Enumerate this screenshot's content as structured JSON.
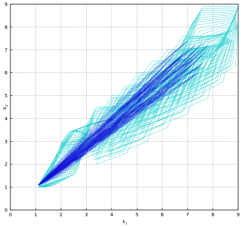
{
  "chart_data": {
    "type": "line",
    "title": "",
    "xlabel": "x",
    "xlabel_sub": "1",
    "ylabel": "x",
    "ylabel_sub": "2",
    "xlim": [
      0,
      9
    ],
    "ylim": [
      0,
      9
    ],
    "x_ticks": [
      "0",
      "1",
      "2",
      "3",
      "4",
      "5",
      "6",
      "7",
      "8",
      "9"
    ],
    "y_ticks": [
      "0",
      "1",
      "2",
      "3",
      "4",
      "5",
      "6",
      "7",
      "8",
      "9"
    ],
    "grid": true,
    "legend": "none",
    "colors": {
      "reachable_sets": "#1ecfcf",
      "trajectories": "#1010d8"
    },
    "series": [
      {
        "kind": "reachable-set-boxes",
        "color": "#1ecfcf",
        "boxes": [
          [
            [
              1.1,
              1.0
            ],
            [
              1.4,
              1.0
            ],
            [
              1.5,
              1.3
            ],
            [
              1.2,
              1.3
            ]
          ],
          [
            [
              1.2,
              1.05
            ],
            [
              1.8,
              1.1
            ],
            [
              2.2,
              2.3
            ],
            [
              1.6,
              2.0
            ]
          ],
          [
            [
              1.4,
              1.1
            ],
            [
              2.6,
              1.6
            ],
            [
              3.0,
              3.1
            ],
            [
              2.0,
              2.8
            ]
          ],
          [
            [
              1.9,
              2.6
            ],
            [
              2.4,
              2.0
            ],
            [
              3.4,
              3.0
            ],
            [
              2.6,
              3.5
            ]
          ],
          [
            [
              2.0,
              2.9
            ],
            [
              2.6,
              3.0
            ],
            [
              3.1,
              3.7
            ],
            [
              2.3,
              3.4
            ]
          ],
          [
            [
              2.6,
              2.1
            ],
            [
              3.6,
              2.6
            ],
            [
              4.4,
              4.1
            ],
            [
              3.2,
              3.8
            ]
          ],
          [
            [
              2.8,
              3.3
            ],
            [
              3.6,
              3.3
            ],
            [
              4.8,
              4.6
            ],
            [
              3.4,
              4.5
            ]
          ],
          [
            [
              3.4,
              2.0
            ],
            [
              4.6,
              2.5
            ],
            [
              5.4,
              4.4
            ],
            [
              4.2,
              4.2
            ]
          ],
          [
            [
              3.3,
              3.7
            ],
            [
              4.2,
              3.7
            ],
            [
              5.1,
              5.0
            ],
            [
              4.0,
              5.0
            ]
          ],
          [
            [
              3.9,
              2.3
            ],
            [
              5.4,
              3.0
            ],
            [
              6.0,
              4.9
            ],
            [
              4.6,
              4.4
            ]
          ],
          [
            [
              3.8,
              4.1
            ],
            [
              4.8,
              4.3
            ],
            [
              5.6,
              5.6
            ],
            [
              4.5,
              5.4
            ]
          ],
          [
            [
              4.4,
              2.8
            ],
            [
              6.2,
              3.6
            ],
            [
              6.9,
              5.6
            ],
            [
              5.2,
              5.0
            ]
          ],
          [
            [
              4.2,
              4.6
            ],
            [
              5.4,
              4.8
            ],
            [
              6.2,
              6.1
            ],
            [
              5.0,
              6.0
            ]
          ],
          [
            [
              5.2,
              3.4
            ],
            [
              7.0,
              4.2
            ],
            [
              7.6,
              6.2
            ],
            [
              6.0,
              5.6
            ]
          ],
          [
            [
              4.6,
              5.0
            ],
            [
              6.0,
              5.2
            ],
            [
              6.8,
              6.6
            ],
            [
              5.6,
              6.5
            ]
          ],
          [
            [
              5.8,
              3.9
            ],
            [
              7.8,
              4.9
            ],
            [
              8.2,
              6.8
            ],
            [
              6.6,
              6.1
            ]
          ],
          [
            [
              5.2,
              5.4
            ],
            [
              6.6,
              5.7
            ],
            [
              7.6,
              7.1
            ],
            [
              6.2,
              7.0
            ]
          ],
          [
            [
              6.6,
              4.6
            ],
            [
              8.4,
              5.6
            ],
            [
              8.8,
              7.4
            ],
            [
              7.2,
              6.7
            ]
          ],
          [
            [
              5.8,
              5.8
            ],
            [
              7.4,
              6.2
            ],
            [
              8.4,
              7.6
            ],
            [
              6.8,
              7.6
            ]
          ],
          [
            [
              7.2,
              5.2
            ],
            [
              8.9,
              6.3
            ],
            [
              9.0,
              8.0
            ],
            [
              7.8,
              7.3
            ]
          ],
          [
            [
              6.4,
              6.4
            ],
            [
              8.0,
              6.8
            ],
            [
              8.9,
              8.4
            ],
            [
              7.2,
              8.2
            ]
          ],
          [
            [
              7.0,
              7.0
            ],
            [
              8.4,
              7.2
            ],
            [
              9.0,
              8.9
            ],
            [
              7.6,
              8.9
            ]
          ]
        ]
      },
      {
        "kind": "trajectories",
        "color": "#1010d8",
        "start": [
          1.1,
          1.1
        ],
        "endpoints": [
          [
            7.0,
            7.4
          ],
          [
            7.3,
            7.2
          ],
          [
            7.5,
            7.0
          ],
          [
            7.6,
            7.3
          ],
          [
            7.7,
            6.9
          ],
          [
            7.2,
            6.6
          ],
          [
            6.9,
            6.9
          ],
          [
            7.1,
            6.3
          ],
          [
            6.4,
            6.2
          ],
          [
            6.0,
            5.9
          ],
          [
            5.6,
            5.5
          ],
          [
            7.4,
            6.0
          ],
          [
            6.7,
            5.7
          ],
          [
            5.2,
            4.7
          ],
          [
            4.6,
            4.3
          ],
          [
            7.6,
            6.4
          ],
          [
            6.8,
            6.6
          ],
          [
            5.8,
            6.0
          ],
          [
            4.0,
            3.8
          ],
          [
            3.4,
            3.1
          ],
          [
            6.2,
            5.2
          ],
          [
            5.5,
            4.9
          ],
          [
            7.0,
            7.0
          ],
          [
            6.5,
            6.8
          ],
          [
            7.8,
            7.2
          ]
        ]
      }
    ]
  }
}
